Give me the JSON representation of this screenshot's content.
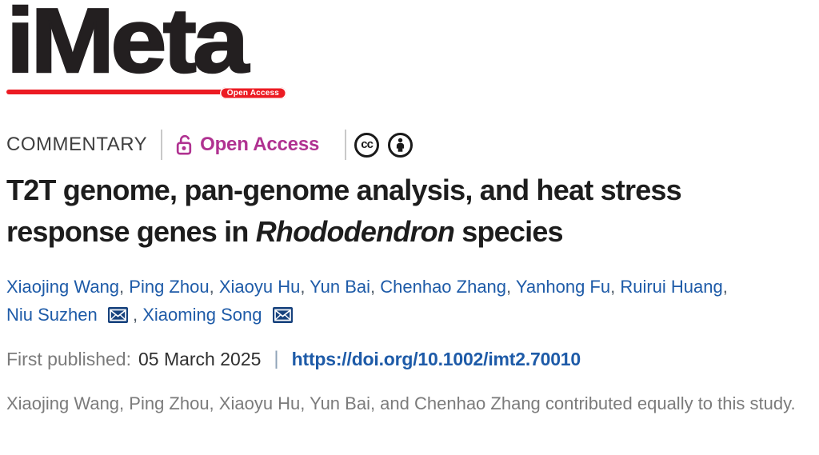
{
  "logo": {
    "text": "iMeta",
    "badge": "Open Access"
  },
  "meta": {
    "article_type": "COMMENTARY",
    "open_access_label": "Open Access",
    "cc_label": "cc",
    "icons": {
      "open_access": "open-lock-icon",
      "license_cc": "cc-circle-icon",
      "license_by": "cc-by-person-icon",
      "correspondence": "envelope-icon"
    }
  },
  "title": {
    "segments": [
      {
        "text": "T2T genome, pan-genome analysis, and heat stress",
        "br": true
      },
      {
        "text": "response genes in "
      },
      {
        "text": "Rhododendron",
        "italic": true
      },
      {
        "text": " species"
      }
    ]
  },
  "authors": [
    {
      "name": "Xiaojing Wang",
      "sep": ", "
    },
    {
      "name": "Ping Zhou",
      "sep": ", "
    },
    {
      "name": "Xiaoyu Hu",
      "sep": ", "
    },
    {
      "name": "Yun Bai",
      "sep": ", "
    },
    {
      "name": "Chenhao Zhang",
      "sep": ", "
    },
    {
      "name": "Yanhong Fu",
      "sep": ", "
    },
    {
      "name": "Ruirui Huang",
      "sep": ",",
      "br": true
    },
    {
      "name": "Niu Suzhen",
      "email": true,
      "sep": ", "
    },
    {
      "name": "Xiaoming Song",
      "email": true
    }
  ],
  "published": {
    "label": "First published:",
    "date": "05 March 2025",
    "separator": "|",
    "doi": "https://doi.org/10.1002/imt2.70010"
  },
  "contribution_note": "Xiaojing Wang, Ping Zhou, Xiaoyu Hu, Yun Bai, and Chenhao Zhang contributed equally to this study.",
  "colors": {
    "logo_black": "#231f20",
    "brand_red": "#ec1b23",
    "oa_pink": "#b03291",
    "title_color": "#1d1d1d",
    "link_blue": "#1e5ba8",
    "envelope_navy": "#17427d",
    "muted_gray": "#7b7b7b",
    "label_gray": "#3f3f3f",
    "divider_gray": "#c9c9c9",
    "icon_black": "#1a1a1a",
    "date_color": "#2f2f2f"
  }
}
